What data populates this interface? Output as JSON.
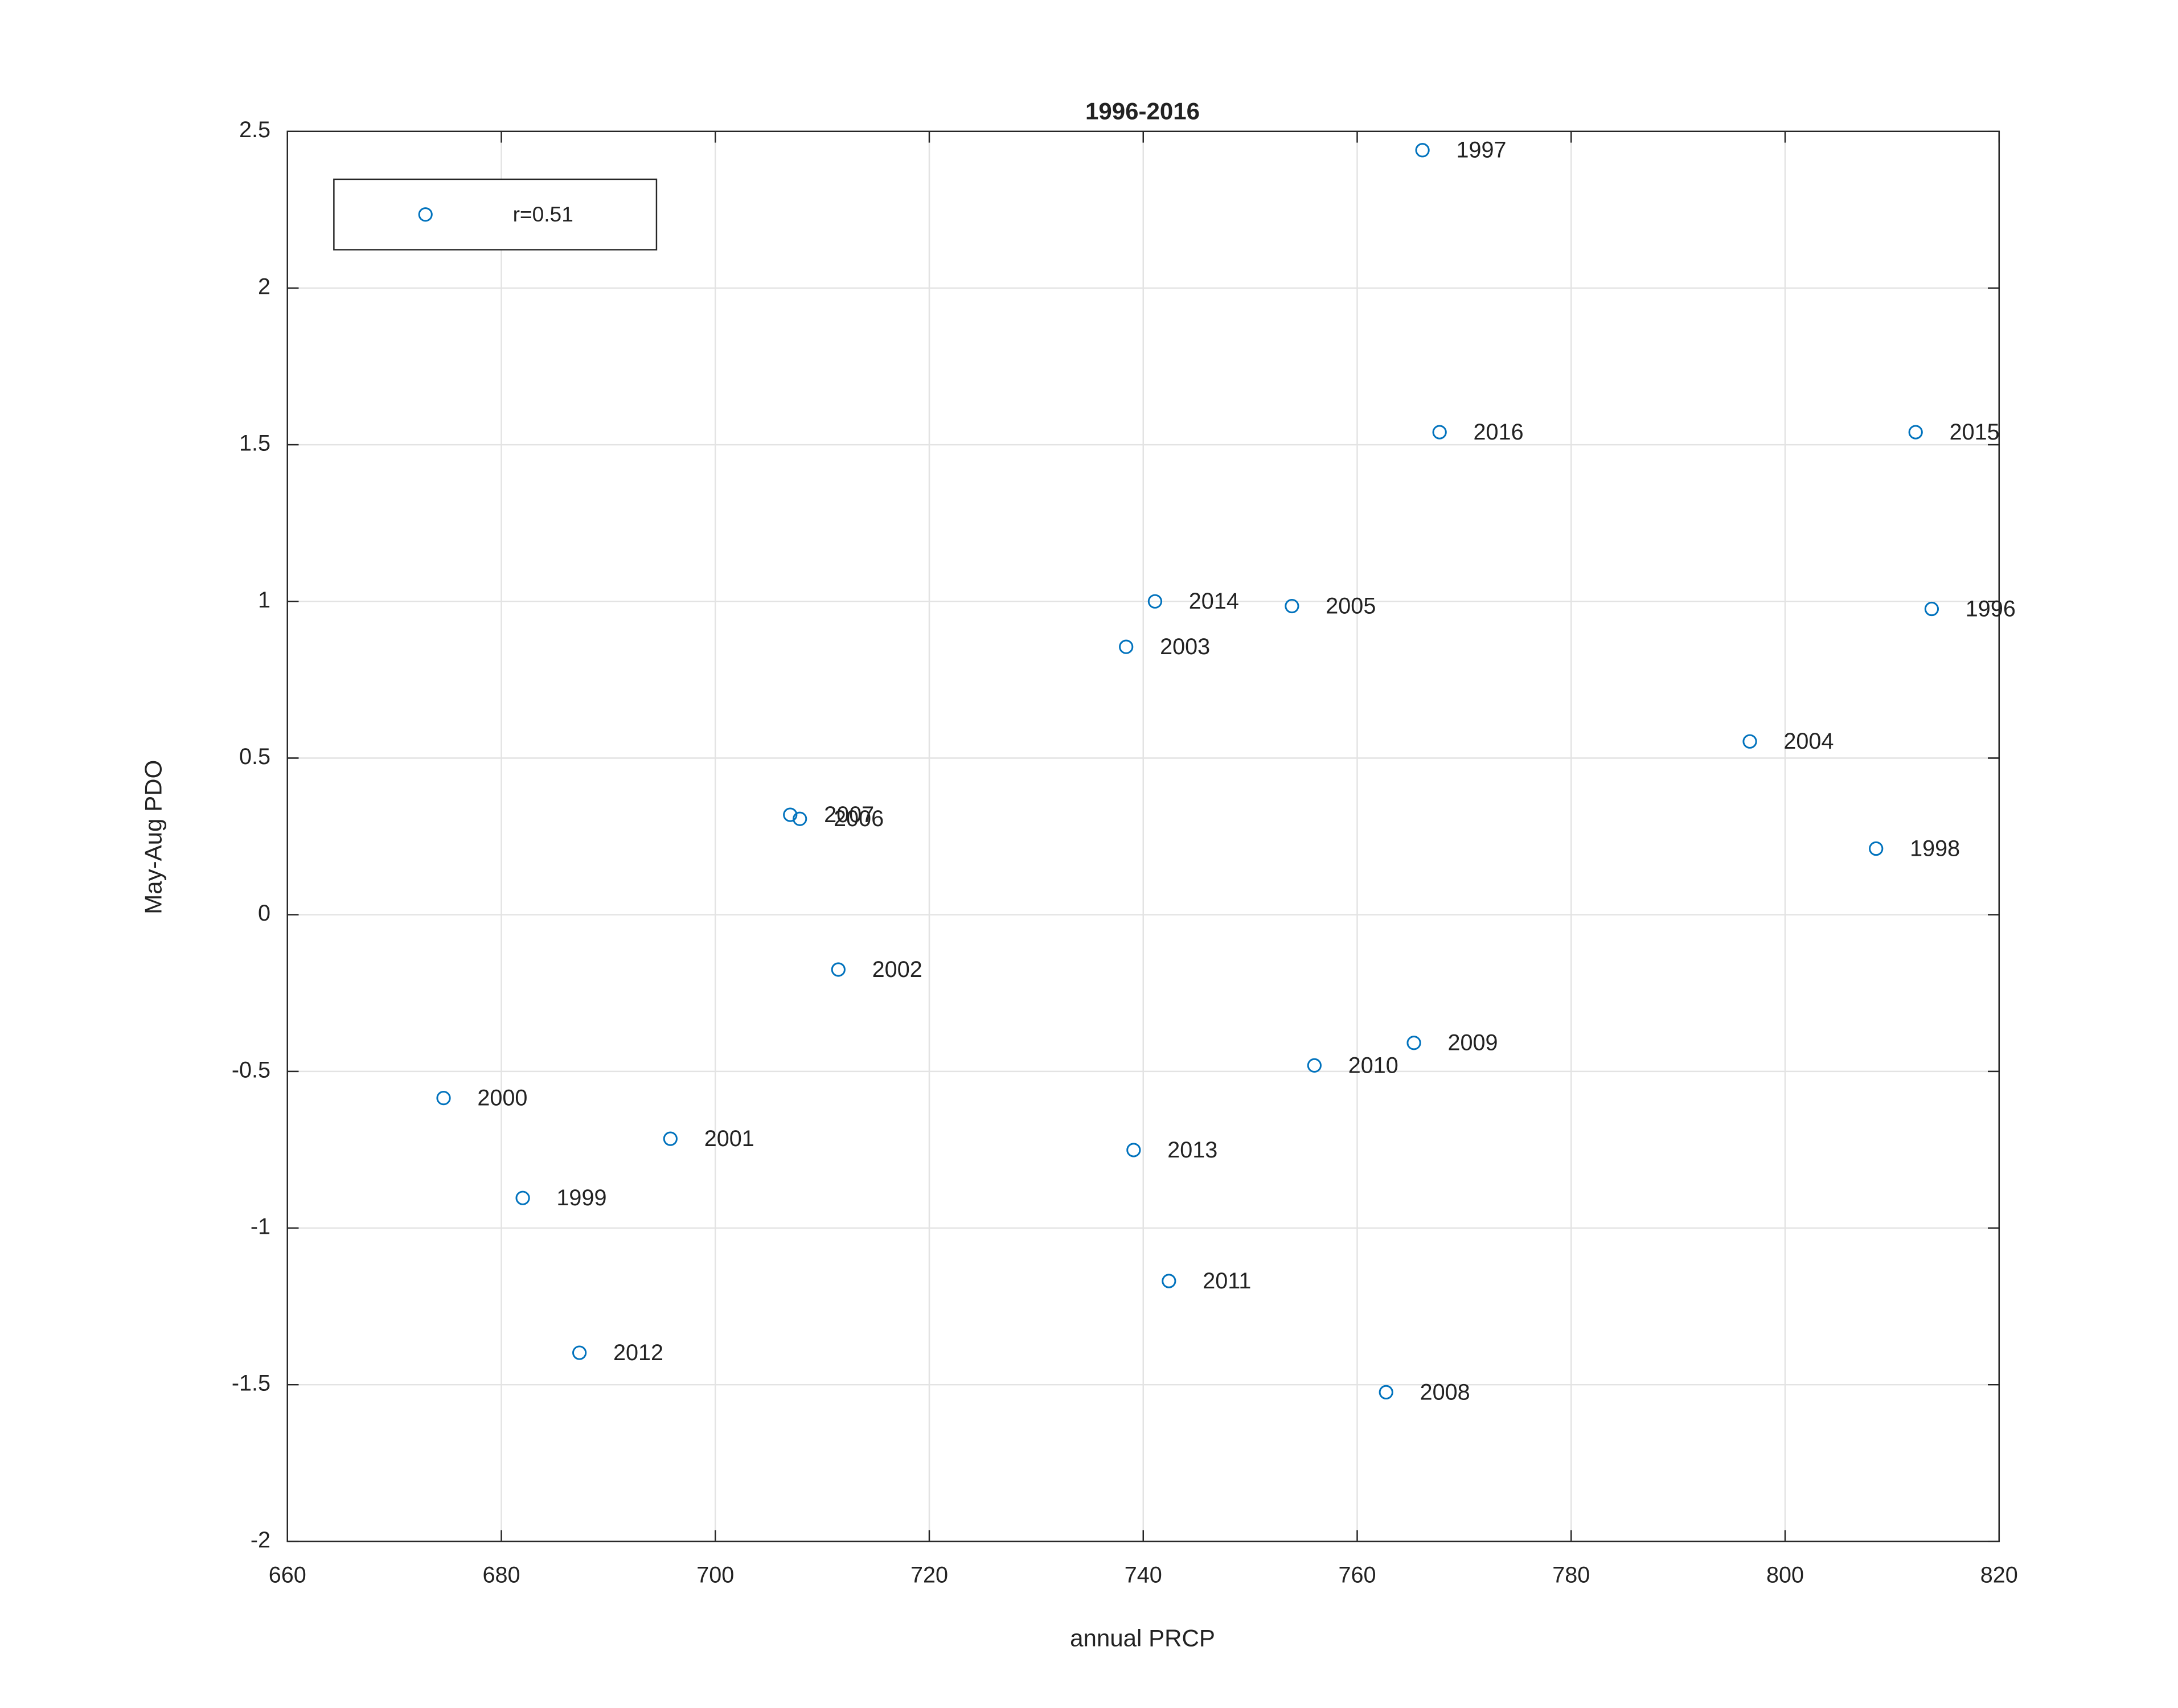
{
  "chart_data": {
    "type": "scatter",
    "title": "1996-2016",
    "xlabel": "annual PRCP",
    "ylabel": "May-Aug PDO",
    "x": [
      813.7,
      766.1,
      808.5,
      682.0,
      674.6,
      695.8,
      711.5,
      738.4,
      796.7,
      753.9,
      707.9,
      707.0,
      762.7,
      765.3,
      756.0,
      742.4,
      687.3,
      739.1,
      741.1,
      812.2,
      767.7
    ],
    "series": [
      {
        "name": "r=0.51",
        "color": "#0072bd",
        "values": [
          0.976,
          2.44,
          0.211,
          -0.904,
          -0.585,
          -0.715,
          -0.175,
          0.855,
          0.553,
          0.985,
          0.306,
          0.319,
          -1.524,
          -0.409,
          -0.481,
          -1.169,
          -1.398,
          -0.751,
          1.0,
          1.54,
          1.54
        ],
        "labels": [
          "1996",
          "1997",
          "1998",
          "1999",
          "2000",
          "2001",
          "2002",
          "2003",
          "2004",
          "2005",
          "2006",
          "2007",
          "2008",
          "2009",
          "2010",
          "2011",
          "2012",
          "2013",
          "2014",
          "2015",
          "2016"
        ]
      }
    ],
    "xlim": [
      660,
      820
    ],
    "xticks": [
      660,
      680,
      700,
      720,
      740,
      760,
      780,
      800,
      820
    ],
    "ylim": [
      -2,
      2.5
    ],
    "yticks": [
      -2,
      -1.5,
      -1,
      -0.5,
      0,
      0.5,
      1,
      1.5,
      2,
      2.5
    ],
    "grid": true,
    "legend": "upper left"
  }
}
